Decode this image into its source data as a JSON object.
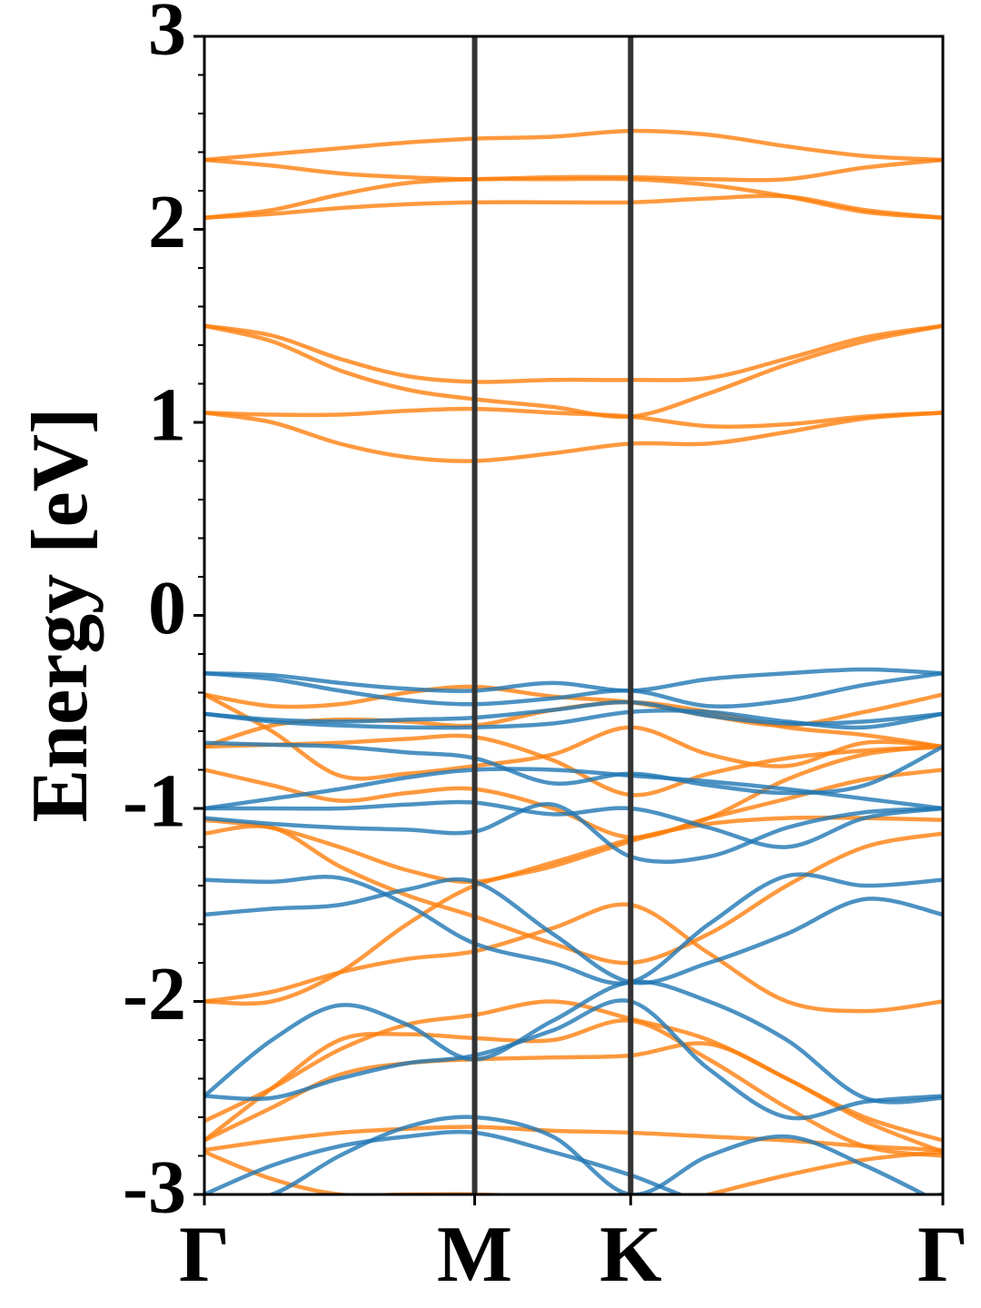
{
  "chart_data": {
    "type": "line",
    "ylabel": "Energy [eV]",
    "x": [
      0,
      0.25,
      0.5,
      0.75,
      1,
      1.289,
      1.577,
      1.866,
      2.155,
      2.443,
      2.732
    ],
    "xlim": [
      0,
      2.732
    ],
    "xticks": [
      {
        "value": 0,
        "label": "Γ"
      },
      {
        "value": 1,
        "label": "M"
      },
      {
        "value": 1.577,
        "label": "K"
      },
      {
        "value": 2.732,
        "label": "Γ"
      }
    ],
    "ylim": [
      -3,
      3
    ],
    "yticks": [
      3,
      2,
      1,
      0,
      -1,
      -2,
      -3
    ],
    "series": [
      {
        "color": "#ff7f0e",
        "values": [
          2.36,
          2.39,
          2.42,
          2.45,
          2.47,
          2.48,
          2.51,
          2.49,
          2.43,
          2.38,
          2.36
        ]
      },
      {
        "color": "#ff7f0e",
        "values": [
          2.36,
          2.33,
          2.29,
          2.27,
          2.26,
          2.27,
          2.27,
          2.26,
          2.26,
          2.32,
          2.36
        ]
      },
      {
        "color": "#ff7f0e",
        "values": [
          2.06,
          2.1,
          2.18,
          2.24,
          2.26,
          2.26,
          2.26,
          2.23,
          2.17,
          2.09,
          2.06
        ]
      },
      {
        "color": "#ff7f0e",
        "values": [
          2.06,
          2.08,
          2.11,
          2.13,
          2.14,
          2.14,
          2.14,
          2.16,
          2.17,
          2.1,
          2.06
        ]
      },
      {
        "color": "#ff7f0e",
        "values": [
          1.5,
          1.45,
          1.33,
          1.24,
          1.21,
          1.22,
          1.22,
          1.23,
          1.33,
          1.44,
          1.5
        ]
      },
      {
        "color": "#ff7f0e",
        "values": [
          1.5,
          1.42,
          1.27,
          1.17,
          1.12,
          1.08,
          1.03,
          1.15,
          1.3,
          1.42,
          1.5
        ]
      },
      {
        "color": "#ff7f0e",
        "values": [
          1.05,
          1.04,
          1.04,
          1.06,
          1.07,
          1.05,
          1.03,
          0.98,
          0.99,
          1.03,
          1.05
        ]
      },
      {
        "color": "#ff7f0e",
        "values": [
          1.05,
          1.0,
          0.89,
          0.82,
          0.8,
          0.84,
          0.89,
          0.89,
          0.95,
          1.02,
          1.05
        ]
      },
      {
        "color": "#ff7f0e",
        "values": [
          -0.41,
          -0.47,
          -0.46,
          -0.4,
          -0.37,
          -0.42,
          -0.45,
          -0.52,
          -0.57,
          -0.5,
          -0.41
        ]
      },
      {
        "color": "#ff7f0e",
        "values": [
          -0.68,
          -0.57,
          -0.54,
          -0.55,
          -0.57,
          -0.49,
          -0.45,
          -0.5,
          -0.58,
          -0.62,
          -0.68
        ]
      },
      {
        "color": "#ff7f0e",
        "values": [
          -0.68,
          -0.67,
          -0.66,
          -0.64,
          -0.63,
          -0.75,
          -0.93,
          -0.82,
          -0.74,
          -0.7,
          -0.68
        ]
      },
      {
        "color": "#ff7f0e",
        "values": [
          -0.8,
          -0.88,
          -0.96,
          -0.92,
          -0.9,
          -1.0,
          -1.15,
          -1.05,
          -0.95,
          -0.85,
          -0.8
        ]
      },
      {
        "color": "#ff7f0e",
        "values": [
          -0.41,
          -0.6,
          -0.83,
          -0.82,
          -0.78,
          -0.72,
          -0.58,
          -0.72,
          -0.78,
          -0.66,
          -0.68
        ]
      },
      {
        "color": "#ff7f0e",
        "values": [
          -1.06,
          -1.1,
          -1.2,
          -1.32,
          -1.38,
          -1.28,
          -1.16,
          -1.08,
          -1.05,
          -1.05,
          -1.06
        ]
      },
      {
        "color": "#ff7f0e",
        "values": [
          -1.13,
          -1.1,
          -1.3,
          -1.45,
          -1.56,
          -1.7,
          -1.8,
          -1.65,
          -1.4,
          -1.2,
          -1.13
        ]
      },
      {
        "color": "#ff7f0e",
        "values": [
          -2.0,
          -1.95,
          -1.85,
          -1.78,
          -1.74,
          -1.62,
          -1.5,
          -1.75,
          -2.0,
          -2.05,
          -2.0
        ]
      },
      {
        "color": "#ff7f0e",
        "values": [
          -2.0,
          -2.0,
          -1.85,
          -1.6,
          -1.4,
          -1.3,
          -1.17,
          -1.05,
          -0.85,
          -0.72,
          -0.68
        ]
      },
      {
        "color": "#ff7f0e",
        "values": [
          -2.62,
          -2.45,
          -2.25,
          -2.12,
          -2.07,
          -2.0,
          -2.09,
          -2.2,
          -2.4,
          -2.6,
          -2.72
        ]
      },
      {
        "color": "#ff7f0e",
        "values": [
          -2.72,
          -2.55,
          -2.38,
          -2.32,
          -2.3,
          -2.29,
          -2.28,
          -2.22,
          -2.4,
          -2.62,
          -2.78
        ]
      },
      {
        "color": "#ff7f0e",
        "values": [
          -2.72,
          -2.45,
          -2.2,
          -2.17,
          -2.19,
          -2.2,
          -2.1,
          -2.3,
          -2.55,
          -2.75,
          -2.8
        ]
      },
      {
        "color": "#ff7f0e",
        "values": [
          -2.77,
          -2.72,
          -2.68,
          -2.66,
          -2.65,
          -2.67,
          -2.68,
          -2.7,
          -2.72,
          -2.75,
          -2.77
        ]
      },
      {
        "color": "#ff7f0e",
        "values": [
          -2.78,
          -2.92,
          -3.0,
          -3.0,
          -3.0,
          -3.02,
          -3.1,
          -3.0,
          -2.9,
          -2.82,
          -2.78
        ]
      },
      {
        "color": "#1f77b4",
        "values": [
          -0.3,
          -0.31,
          -0.35,
          -0.38,
          -0.39,
          -0.35,
          -0.39,
          -0.33,
          -0.3,
          -0.28,
          -0.3
        ]
      },
      {
        "color": "#1f77b4",
        "values": [
          -0.3,
          -0.33,
          -0.39,
          -0.44,
          -0.46,
          -0.43,
          -0.39,
          -0.47,
          -0.44,
          -0.36,
          -0.3
        ]
      },
      {
        "color": "#1f77b4",
        "values": [
          -0.51,
          -0.55,
          -0.57,
          -0.58,
          -0.58,
          -0.56,
          -0.5,
          -0.5,
          -0.55,
          -0.58,
          -0.51
        ]
      },
      {
        "color": "#1f77b4",
        "values": [
          -0.51,
          -0.54,
          -0.55,
          -0.54,
          -0.53,
          -0.49,
          -0.45,
          -0.52,
          -0.56,
          -0.55,
          -0.51
        ]
      },
      {
        "color": "#1f77b4",
        "values": [
          -0.66,
          -0.67,
          -0.68,
          -0.71,
          -0.74,
          -0.87,
          -0.82,
          -0.88,
          -0.92,
          -0.88,
          -0.68
        ]
      },
      {
        "color": "#1f77b4",
        "values": [
          -1.0,
          -0.95,
          -0.9,
          -0.84,
          -0.8,
          -0.8,
          -0.83,
          -0.86,
          -0.9,
          -0.95,
          -1.0
        ]
      },
      {
        "color": "#1f77b4",
        "values": [
          -1.0,
          -1.0,
          -1.0,
          -0.98,
          -0.97,
          -1.03,
          -1.0,
          -1.1,
          -1.2,
          -1.05,
          -1.0
        ]
      },
      {
        "color": "#1f77b4",
        "values": [
          -1.05,
          -1.08,
          -1.1,
          -1.11,
          -1.12,
          -0.98,
          -1.25,
          -1.25,
          -1.1,
          -1.02,
          -1.0
        ]
      },
      {
        "color": "#1f77b4",
        "values": [
          -1.37,
          -1.38,
          -1.36,
          -1.5,
          -1.7,
          -1.8,
          -1.9,
          -1.6,
          -1.35,
          -1.4,
          -1.37
        ]
      },
      {
        "color": "#1f77b4",
        "values": [
          -1.55,
          -1.52,
          -1.5,
          -1.42,
          -1.38,
          -1.65,
          -1.9,
          -1.8,
          -1.65,
          -1.47,
          -1.55
        ]
      },
      {
        "color": "#1f77b4",
        "values": [
          -2.49,
          -2.2,
          -2.02,
          -2.12,
          -2.3,
          -2.1,
          -1.9,
          -2.0,
          -2.2,
          -2.5,
          -2.5
        ]
      },
      {
        "color": "#1f77b4",
        "values": [
          -2.49,
          -2.5,
          -2.4,
          -2.32,
          -2.28,
          -2.15,
          -2.0,
          -2.35,
          -2.6,
          -2.52,
          -2.49
        ]
      },
      {
        "color": "#1f77b4",
        "values": [
          -3.0,
          -2.85,
          -2.75,
          -2.7,
          -2.68,
          -2.78,
          -2.9,
          -3.05,
          -3.1,
          -3.05,
          -3.0
        ]
      },
      {
        "color": "#1f77b4",
        "values": [
          -3.05,
          -3.0,
          -2.8,
          -2.65,
          -2.6,
          -2.7,
          -3.0,
          -2.8,
          -2.7,
          -2.85,
          -3.05
        ]
      }
    ]
  }
}
